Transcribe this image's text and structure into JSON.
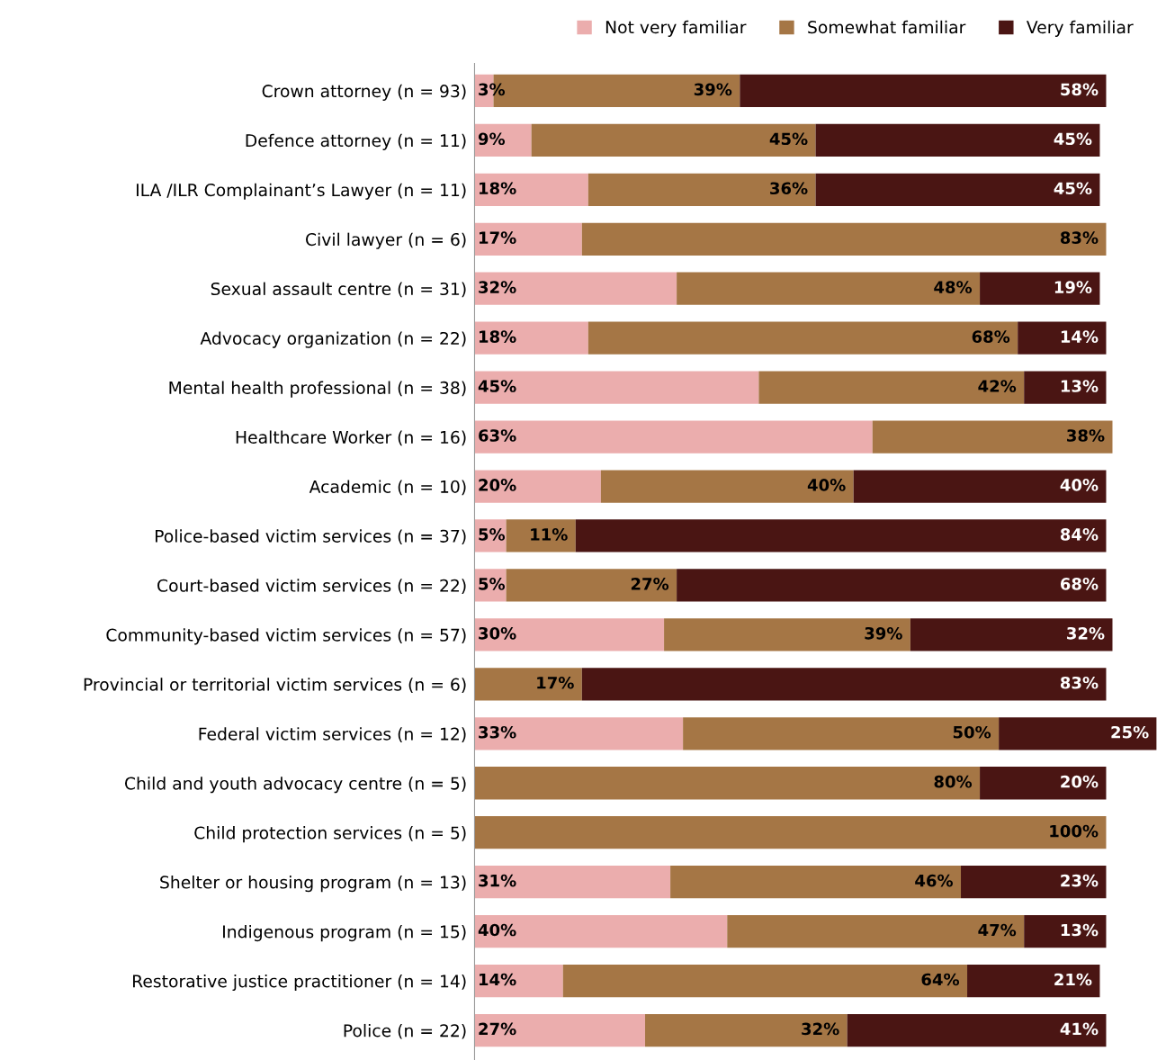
{
  "chart_data": {
    "type": "bar",
    "orientation": "horizontal",
    "stacked": true,
    "legend": "top right",
    "categories": [
      "Crown attorney (n = 93)",
      "Defence attorney (n = 11)",
      "ILA /ILR Complainant’s Lawyer (n = 11)",
      "Civil lawyer (n = 6)",
      "Sexual assault centre (n = 31)",
      "Advocacy organization (n = 22)",
      "Mental health professional (n = 38)",
      "Healthcare Worker (n = 16)",
      "Academic (n = 10)",
      "Police-based victim services (n = 37)",
      "Court-based victim services (n = 22)",
      "Community-based victim services (n = 57)",
      "Provincial or territorial victim services (n = 6)",
      "Federal victim services (n = 12)",
      "Child and youth advocacy centre (n = 5)",
      "Child protection services (n = 5)",
      "Shelter or housing program (n = 13)",
      "Indigenous program (n = 15)",
      "Restorative justice practitioner (n = 14)",
      "Police (n = 22)"
    ],
    "series": [
      {
        "name": "Not very familiar",
        "color": "#ebadad",
        "values": [
          3,
          9,
          18,
          17,
          32,
          18,
          45,
          63,
          20,
          5,
          5,
          30,
          null,
          33,
          null,
          null,
          31,
          40,
          14,
          27
        ],
        "value_labels": [
          "3%",
          "9%",
          "18%",
          "17%",
          "32%",
          "18%",
          "45%",
          "63%",
          "20%",
          "5%",
          "5%",
          "30%",
          null,
          "33%",
          null,
          null,
          "31%",
          "40%",
          "14%",
          "27%"
        ]
      },
      {
        "name": "Somewhat familiar",
        "color": "#a57645",
        "values": [
          39,
          45,
          36,
          83,
          48,
          68,
          42,
          38,
          40,
          11,
          27,
          39,
          17,
          50,
          80,
          100,
          46,
          47,
          64,
          32
        ],
        "value_labels": [
          "39%",
          "45%",
          "36%",
          "83%",
          "48%",
          "68%",
          "42%",
          "38%",
          "40%",
          "11%",
          "27%",
          "39%",
          "17%",
          "50%",
          "80%",
          "100%",
          "46%",
          "47%",
          "64%",
          "32%"
        ]
      },
      {
        "name": "Very familiar",
        "color": "#4a1513",
        "values": [
          58,
          45,
          45,
          null,
          19,
          14,
          13,
          null,
          40,
          84,
          68,
          32,
          83,
          25,
          20,
          null,
          23,
          13,
          21,
          41
        ],
        "value_labels": [
          "58%",
          "45%",
          "45%",
          null,
          "19%",
          "14%",
          "13%",
          null,
          "40%",
          "84%",
          "68%",
          "32%",
          "83%",
          "25%",
          "20%",
          null,
          "23%",
          "13%",
          "21%",
          "41%"
        ]
      }
    ]
  }
}
